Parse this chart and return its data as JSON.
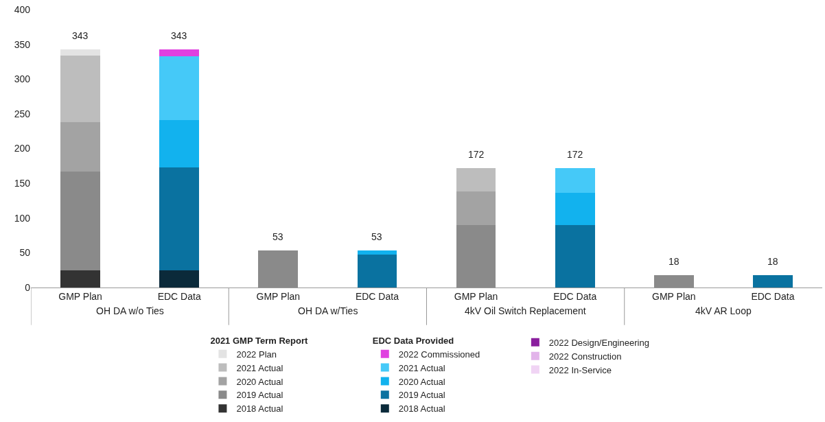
{
  "chart_data": {
    "type": "bar",
    "stacked": true,
    "categories": [
      "GMP Plan",
      "EDC Data",
      "GMP Plan",
      "EDC Data",
      "GMP Plan",
      "EDC Data",
      "GMP Plan",
      "EDC Data"
    ],
    "annotations": [
      "OH DA w/o Ties",
      "OH DA w/Ties",
      "4kV Oil Switch Replacement",
      "4kV AR Loop"
    ],
    "legend_title": [
      "2021 GMP Term Report",
      "EDC Data Provided"
    ],
    "series": [
      {
        "name": "2018 Actual",
        "color": "#333333",
        "values": [
          25,
          null,
          null,
          null,
          null,
          null,
          null,
          null
        ]
      },
      {
        "name": "2019 Actual",
        "color": "#8a8a8a",
        "values": [
          142,
          null,
          53,
          null,
          90,
          null,
          18,
          null
        ]
      },
      {
        "name": "2020 Actual",
        "color": "#a3a3a3",
        "values": [
          71,
          null,
          null,
          null,
          48,
          null,
          null,
          null
        ]
      },
      {
        "name": "2021 Actual",
        "color": "#bdbdbd",
        "values": [
          96,
          null,
          null,
          null,
          34,
          null,
          null,
          null
        ]
      },
      {
        "name": "2022 Plan",
        "color": "#e3e3e3",
        "values": [
          9,
          null,
          null,
          null,
          null,
          null,
          null,
          null
        ]
      },
      {
        "name": "2018 Actual",
        "color": "#0b2a3a",
        "values": [
          null,
          25,
          null,
          null,
          null,
          null,
          null,
          null
        ]
      },
      {
        "name": "2019 Actual",
        "color": "#0a72a0",
        "values": [
          null,
          148,
          null,
          47,
          null,
          90,
          null,
          18
        ]
      },
      {
        "name": "2020 Actual",
        "color": "#12b2ee",
        "values": [
          null,
          68,
          null,
          6,
          null,
          46,
          null,
          null
        ]
      },
      {
        "name": "2021 Actual",
        "color": "#45c9f8",
        "values": [
          null,
          92,
          null,
          null,
          null,
          36,
          null,
          null
        ]
      },
      {
        "name": "2022 Commissioned",
        "color": "#e040e0",
        "values": [
          null,
          10,
          null,
          null,
          null,
          null,
          null,
          null
        ]
      },
      {
        "name": "2022 Design/Engineering",
        "color": "#8a1f9e",
        "values": [
          null,
          null,
          null,
          null,
          null,
          null,
          null,
          null
        ]
      },
      {
        "name": "2022 Construction",
        "color": "#e2b4ea",
        "values": [
          null,
          null,
          null,
          null,
          null,
          null,
          null,
          null
        ]
      },
      {
        "name": "2022 In-Service",
        "color": "#f0d4f4",
        "values": [
          null,
          null,
          null,
          null,
          null,
          null,
          null,
          null
        ]
      }
    ],
    "totals": [
      "343",
      "343",
      "53",
      "53",
      "172",
      "172",
      "18",
      "18"
    ],
    "ylim": [
      0,
      400
    ],
    "yticks": [
      0,
      50,
      100,
      150,
      200,
      250,
      300,
      350,
      400
    ],
    "legend": "bottom"
  }
}
